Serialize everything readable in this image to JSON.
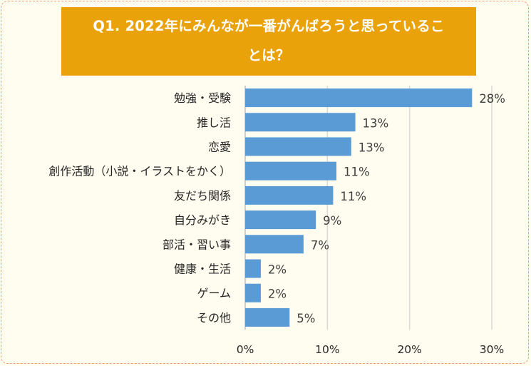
{
  "chart_data": {
    "type": "bar",
    "orientation": "horizontal",
    "title_lines": [
      "Q1. 2022年にみんなが一番がんばろうと思っているこ",
      "とは？"
    ],
    "categories": [
      "勉強・受験",
      "推し活",
      "恋愛",
      "創作活動（小説・イラストをかく）",
      "友だち関係",
      "自分みがき",
      "部活・習い事",
      "健康・生活",
      "ゲーム",
      "その他"
    ],
    "values": [
      27.6,
      13.4,
      12.9,
      11.1,
      10.7,
      8.6,
      7.1,
      1.9,
      1.9,
      5.4
    ],
    "value_labels": [
      "28%",
      "13%",
      "13%",
      "11%",
      "11%",
      "9%",
      "7%",
      "2%",
      "2%",
      "5%"
    ],
    "xlim": [
      0,
      30
    ],
    "xticks": [
      0,
      10,
      20,
      30
    ],
    "xtick_labels": [
      "0%",
      "10%",
      "20%",
      "30%"
    ],
    "bar_color": "#5b9bd5",
    "grid_color": "#d9d9d9",
    "title_bg": "#eaa20b",
    "grid": true
  }
}
